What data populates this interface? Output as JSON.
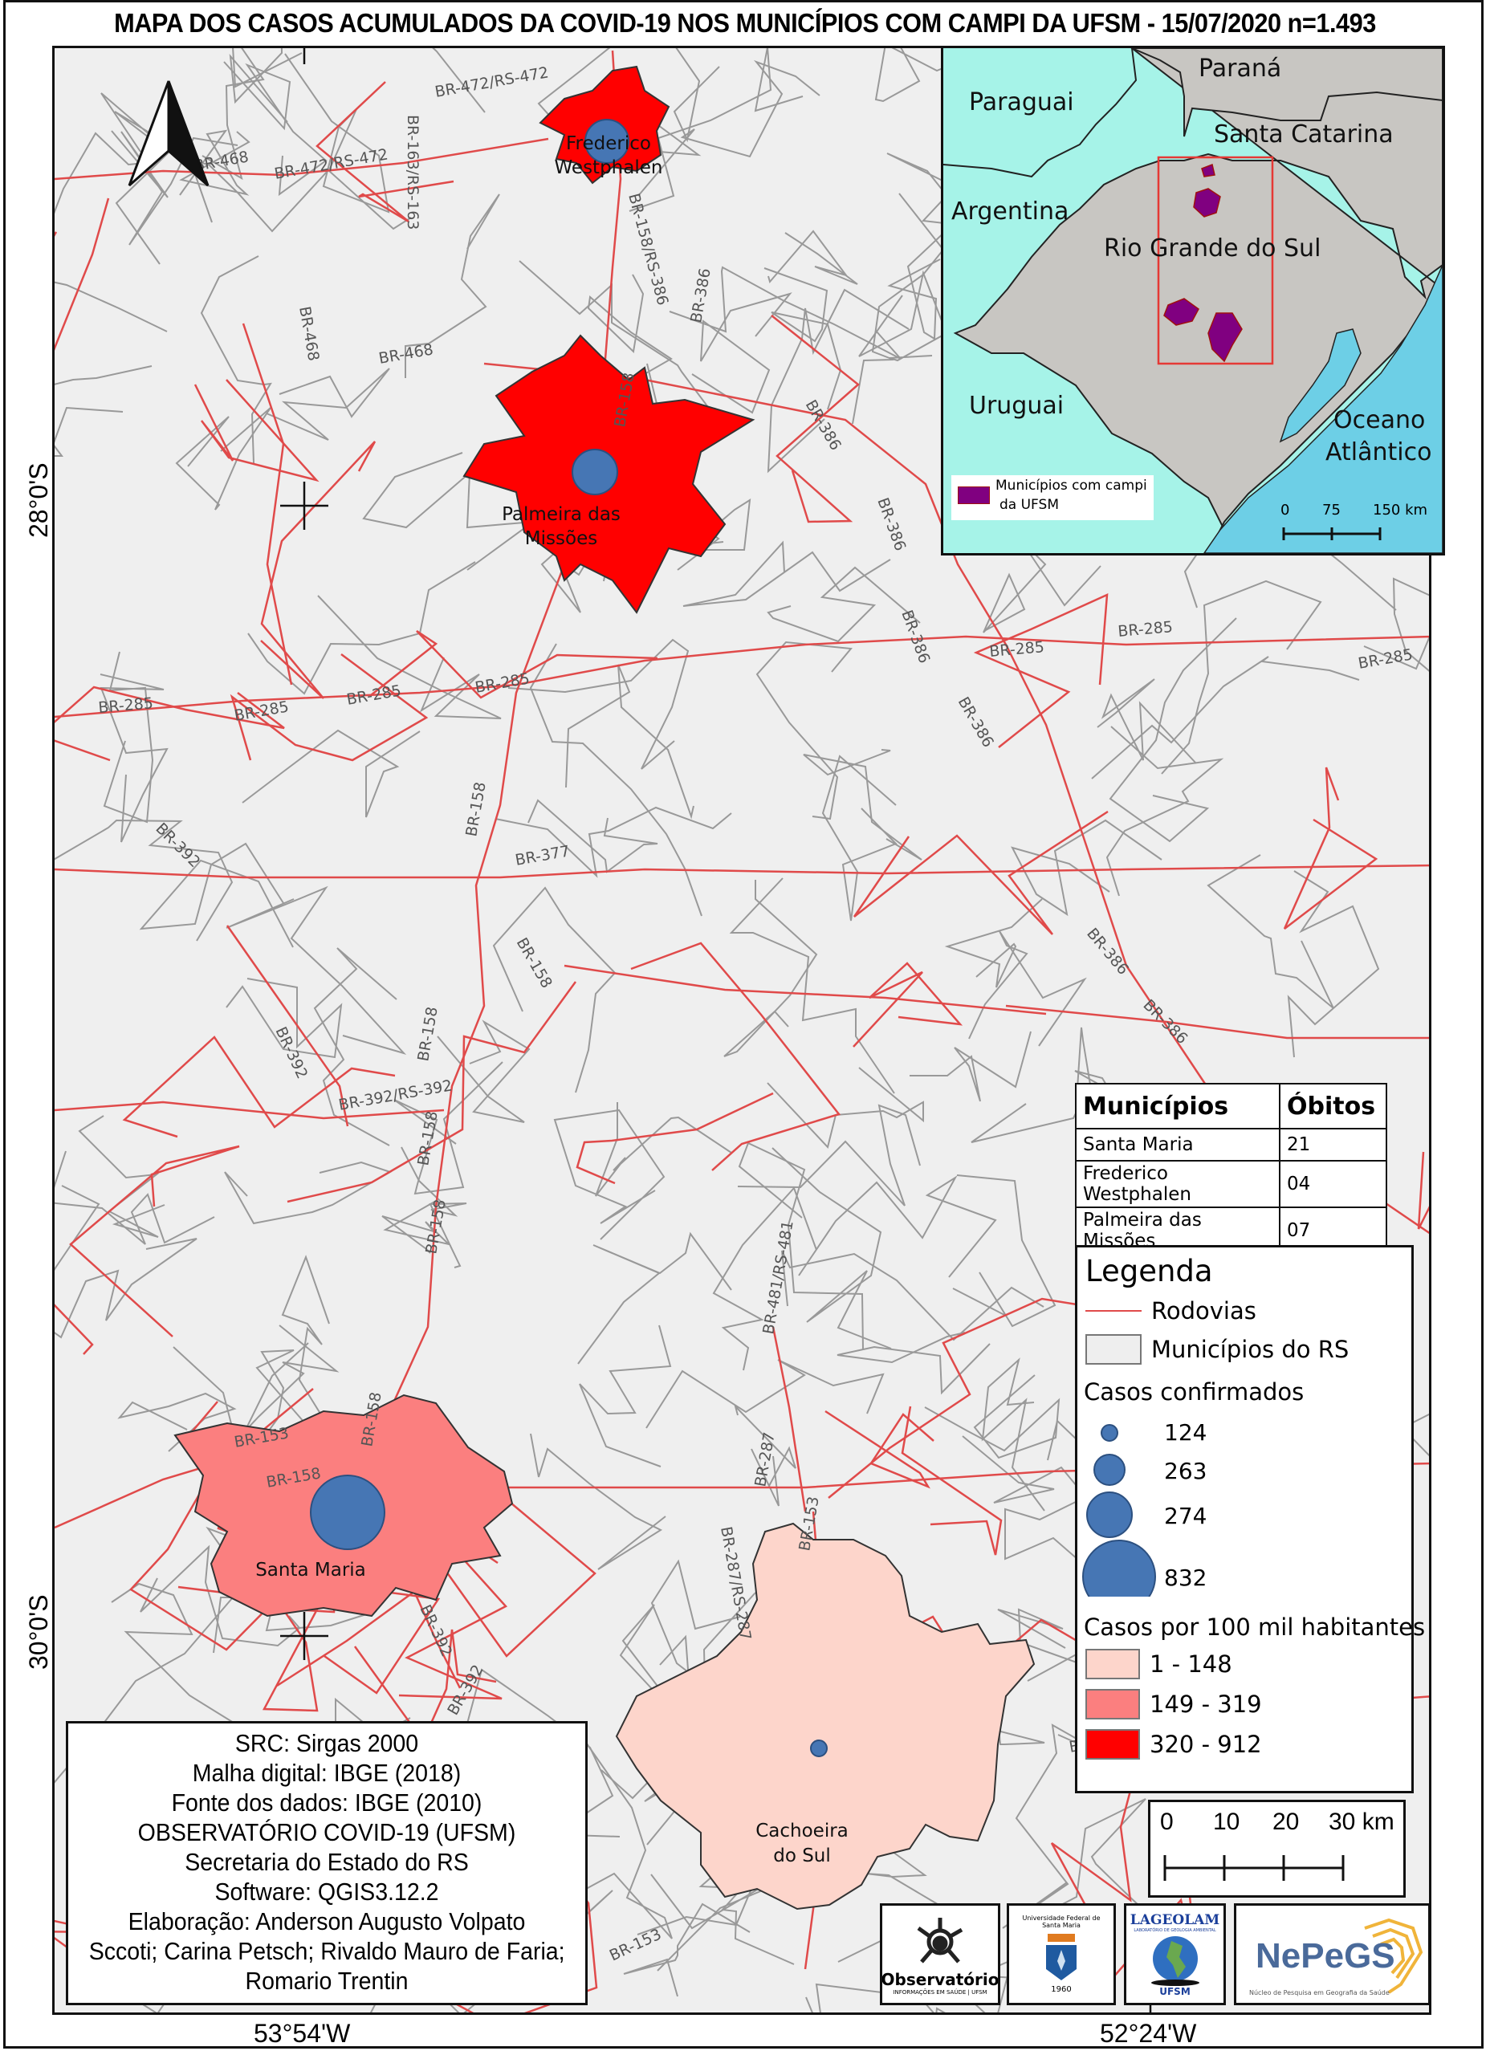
{
  "title": "MAPA DOS CASOS ACUMULADOS DA COVID-19 NOS MUNICÍPIOS COM CAMPI DA UFSM - 15/07/2020 n=1.493",
  "coordinates": {
    "lat_top": "28°0'S",
    "lat_bottom": "30°0'S",
    "lon_left": "53°54'W",
    "lon_right": "52°24'W"
  },
  "municipalities": [
    {
      "name_line1": "Frederico",
      "name_line2": "Westphalen",
      "class": "320 - 912",
      "cases": 263
    },
    {
      "name_line1": "Palmeira das",
      "name_line2": "Missões",
      "class": "320 - 912",
      "cases": 274
    },
    {
      "name_line1": "Santa Maria",
      "name_line2": "",
      "class": "149 - 319",
      "cases": 832
    },
    {
      "name_line1": "Cachoeira",
      "name_line2": "do Sul",
      "class": "1 - 148",
      "cases": 124
    }
  ],
  "road_labels": [
    "BR-472/RS-472",
    "BR-468",
    "BR-163/RS-163",
    "BR-472/RS-472",
    "BR-158/RS-386",
    "BR-386",
    "BR-468",
    "BR-468",
    "BR-158",
    "BR-386",
    "BR-386",
    "BR-386",
    "BR-285",
    "BR-285",
    "BR-285",
    "BR-285",
    "BR-285",
    "BR-285",
    "BR-285",
    "BR-386",
    "BR-392",
    "BR-377",
    "BR-158",
    "BR-158",
    "BR-386",
    "BR-386",
    "BR-392",
    "BR-392/RS-392",
    "BR-158",
    "BR-158",
    "BR-158",
    "BR-481/RS-481",
    "BR-287/RS-287",
    "BR-287",
    "BR-158",
    "BR-158",
    "BR-153",
    "BR-392",
    "BR-392",
    "BR-290",
    "BR-153",
    "BR-153"
  ],
  "inset": {
    "labels": {
      "parana": "Paraná",
      "paraguai": "Paraguai",
      "santa_catarina": "Santa Catarina",
      "argentina": "Argentina",
      "rio_grande_do_sul": "Rio Grande do Sul",
      "uruguai": "Uruguai",
      "oceano_1": "Oceano",
      "oceano_2": "Atlântico"
    },
    "legend_line1": "Municípios com campi",
    "legend_line2": "da UFSM",
    "scale": [
      "0",
      "75",
      "150 km"
    ],
    "colors": {
      "neighbors": "#a6f3e8",
      "brazil": "#c8c6c2",
      "ocean": "#6dcfe6",
      "campi": "#800080",
      "extent": "#e53935"
    }
  },
  "deaths_table": {
    "headers": [
      "Municípios",
      "Óbitos"
    ],
    "rows": [
      [
        "Santa Maria",
        "21"
      ],
      [
        "Frederico Westphalen",
        "04"
      ],
      [
        "Palmeira das Missões",
        "07"
      ]
    ]
  },
  "legend": {
    "title": "Legenda",
    "roads": "Rodovias",
    "municipalities": "Municípios do RS",
    "cases_title": "Casos confirmados",
    "cases": [
      "124",
      "263",
      "274",
      "832"
    ],
    "rate_title": "Casos por 100 mil habitantes",
    "rate_classes": [
      {
        "label": "1 - 148",
        "color": "#fdd5cb"
      },
      {
        "label": "149 - 319",
        "color": "#fb7f7f"
      },
      {
        "label": "320 - 912",
        "color": "#ff0000"
      }
    ],
    "colors": {
      "road": "#e04a4a",
      "municipality_fill": "#eeeeee",
      "circle": "#4676b4"
    }
  },
  "scale_bar": [
    "0",
    "10",
    "20",
    "30 km"
  ],
  "info": [
    "SRC: Sirgas 2000",
    "Malha digital: IBGE (2018)",
    "Fonte dos dados: IBGE (2010)",
    "OBSERVATÓRIO COVID-19 (UFSM)",
    "Secretaria do Estado do RS",
    "Software: QGIS3.12.2",
    "Elaboração: Anderson Augusto Volpato",
    "Sccoti; Carina Petsch; Rivaldo Mauro de Faria;",
    "Romario Trentin"
  ],
  "logos": {
    "observatorio": "Observatório",
    "observatorio_sub": "INFORMAÇÕES EM SAÚDE | UFSM",
    "ufsm": "Universidade Federal de Santa Maria",
    "ufsm_year": "1960",
    "lageolam": "LAGEOLAM",
    "lageolam_sub": "LABORATÓRIO DE GEOLOGIA AMBIENTAL",
    "lageolam_ufsm": "UFSM",
    "nepegs": "NePeGS",
    "nepegs_sub": "Núcleo de Pesquisa em Geografia da Saúde"
  }
}
